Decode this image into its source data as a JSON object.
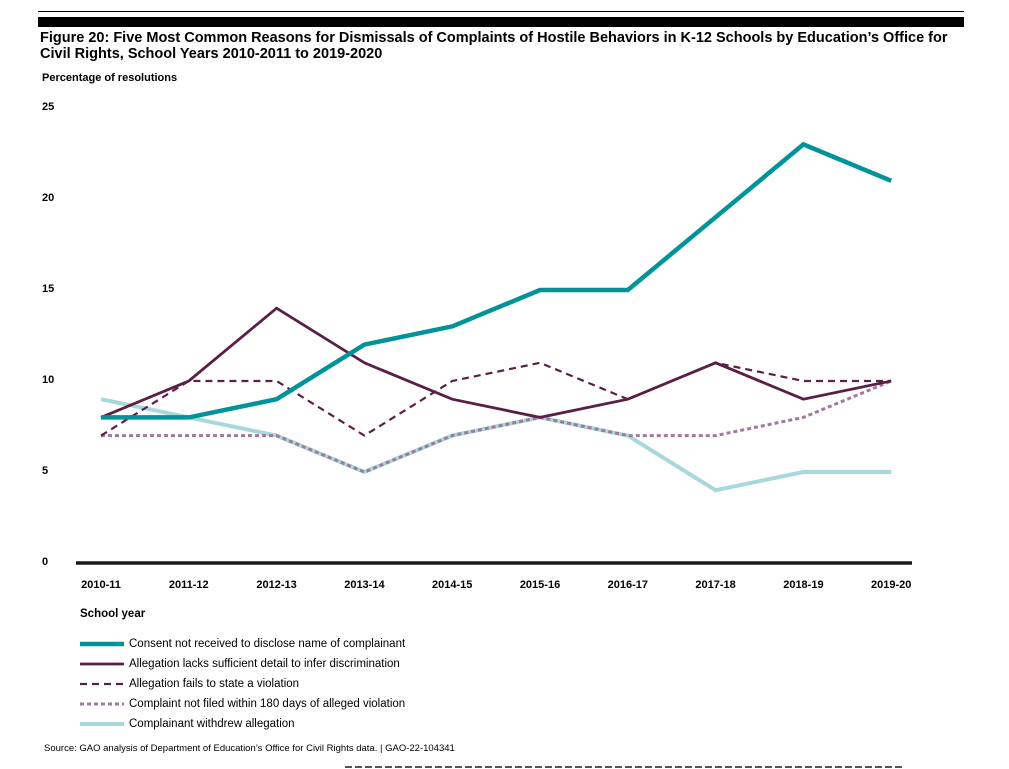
{
  "figure_title": "Figure 20: Five Most Common Reasons for Dismissals of Complaints of Hostile Behaviors in K-12 Schools by Education’s Office for Civil Rights, School Years 2010-2011 to 2019-2020",
  "source": "Source: GAO analysis of Department of Education’s Office for Civil Rights data.  |  GAO-22-104341",
  "chart_data": {
    "type": "line",
    "title": "Figure 20: Five Most Common Reasons for Dismissals of Complaints of Hostile Behaviors in K-12 Schools by Education’s Office for Civil Rights, School Years 2010-2011 to 2019-2020",
    "ylabel": "Percentage of resolutions",
    "xlabel": "School year",
    "ylim": [
      0,
      25
    ],
    "yticks": [
      "0",
      "5",
      "10",
      "15",
      "20",
      "25"
    ],
    "categories": [
      "2010-11",
      "2011-12",
      "2012-13",
      "2013-14",
      "2014-15",
      "2015-16",
      "2016-17",
      "2017-18",
      "2018-19",
      "2019-20"
    ],
    "grid": false,
    "legend_position": "bottom-left",
    "series": [
      {
        "name": "Complainant withdrew allegation",
        "style": "solid-light",
        "color": "#a8d8dc",
        "values": [
          9,
          8,
          7,
          5,
          7,
          8,
          7,
          4,
          5,
          5
        ]
      },
      {
        "name": "Complaint not filed within 180 days of alleged violation",
        "style": "dotted",
        "color": "#a07a9a",
        "values": [
          7,
          7,
          7,
          5,
          7,
          8,
          7,
          7,
          8,
          10
        ]
      },
      {
        "name": "Allegation fails to state a violation",
        "style": "dashed",
        "color": "#5a2145",
        "values": [
          7,
          10,
          10,
          7,
          10,
          11,
          9,
          11,
          10,
          10
        ]
      },
      {
        "name": "Allegation lacks sufficient detail to infer discrimination",
        "style": "solid",
        "color": "#5a1f45",
        "values": [
          8,
          10,
          14,
          11,
          9,
          8,
          9,
          11,
          9,
          10
        ]
      },
      {
        "name": "Consent not received to disclose name of complainant",
        "style": "solid-thick",
        "color": "#00939a",
        "values": [
          8,
          8,
          9,
          12,
          13,
          15,
          15,
          19,
          23,
          21
        ]
      }
    ],
    "legend_order": [
      4,
      3,
      2,
      1,
      0
    ]
  }
}
